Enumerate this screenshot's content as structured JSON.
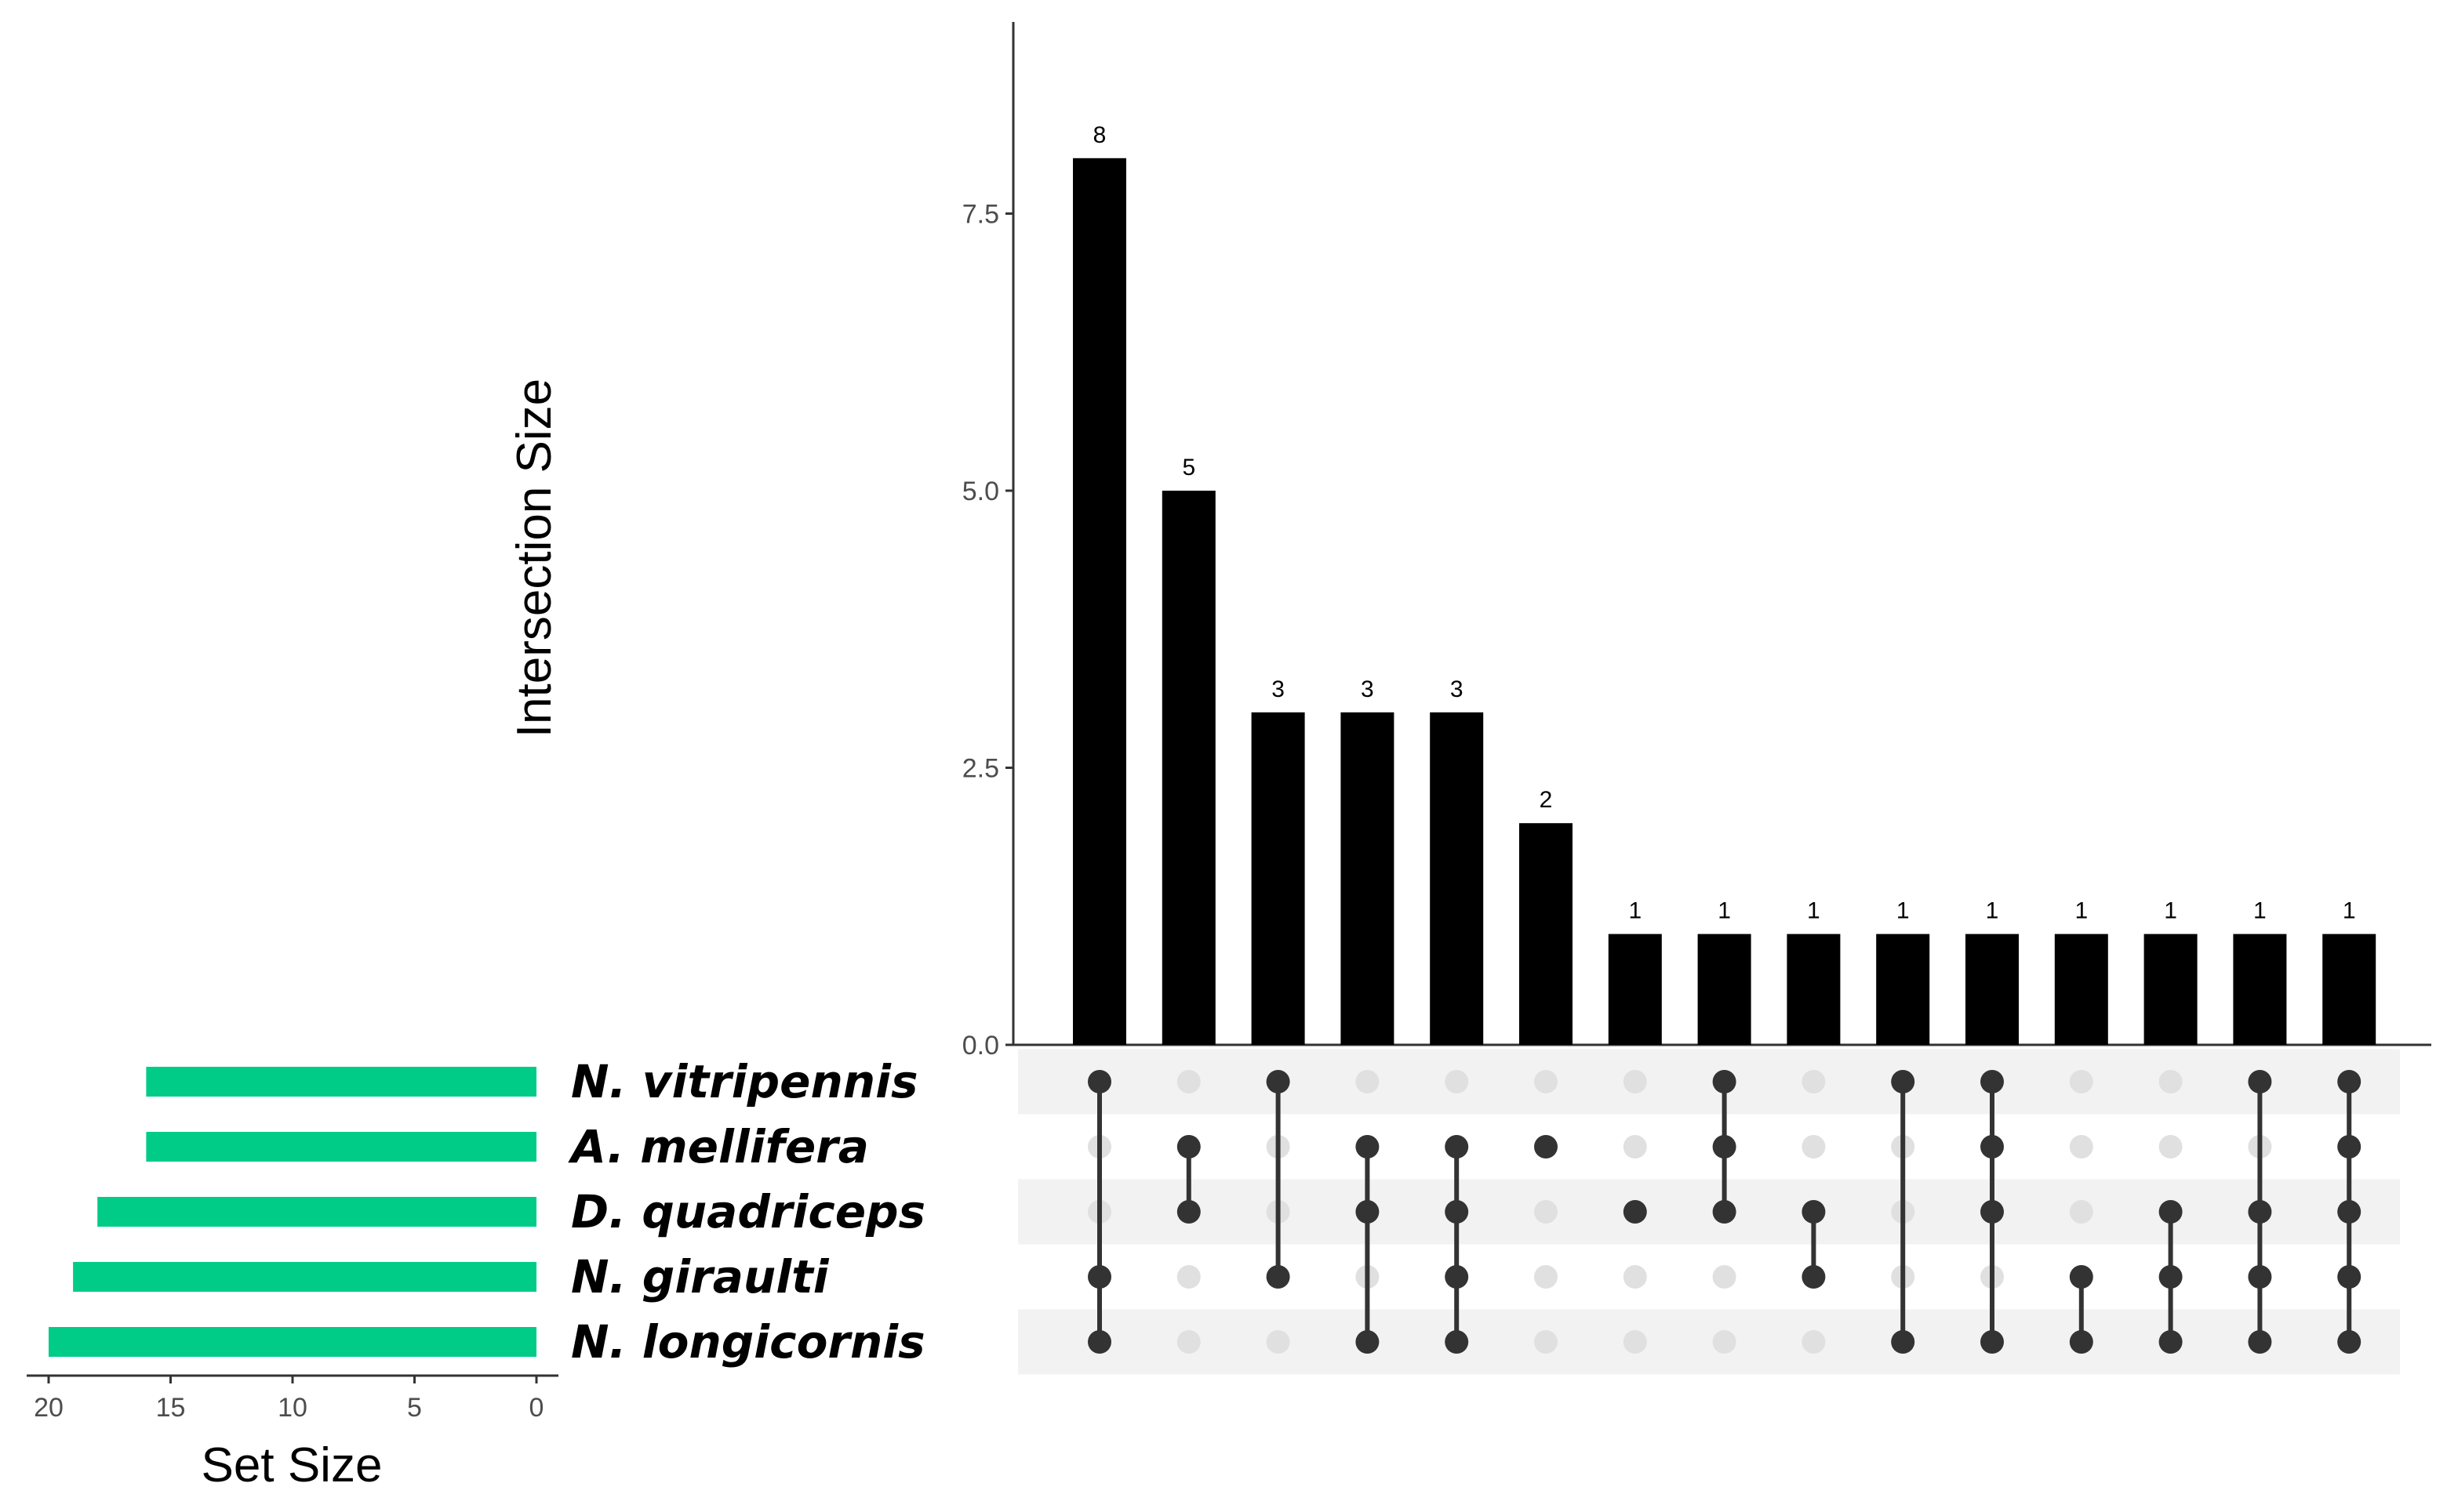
{
  "chart_data": {
    "type": "upset",
    "intersection_axis": {
      "title": "Intersection Size",
      "ylim": [
        0,
        9.2
      ],
      "ticks": [
        0,
        2.5,
        5,
        7.5
      ],
      "tick_labels": [
        "0.0",
        "2.5",
        "5.0",
        "7.5"
      ]
    },
    "set_size_axis": {
      "title": "Set Size",
      "xlim": [
        21,
        0
      ],
      "ticks": [
        20,
        15,
        10,
        5,
        0
      ],
      "tick_labels": [
        "20",
        "15",
        "10",
        "5",
        "0"
      ]
    },
    "sets": [
      {
        "name": "N. vitripennis",
        "size": 16
      },
      {
        "name": "A. mellifera",
        "size": 16
      },
      {
        "name": "D. quadriceps",
        "size": 18
      },
      {
        "name": "N. giraulti",
        "size": 19
      },
      {
        "name": "N. longicornis",
        "size": 20
      }
    ],
    "intersections": [
      {
        "value": 8,
        "label": "8",
        "members": [
          0,
          3,
          4
        ]
      },
      {
        "value": 5,
        "label": "5",
        "members": [
          1,
          2
        ]
      },
      {
        "value": 3,
        "label": "3",
        "members": [
          0,
          3
        ]
      },
      {
        "value": 3,
        "label": "3",
        "members": [
          1,
          2,
          4
        ]
      },
      {
        "value": 3,
        "label": "3",
        "members": [
          1,
          2,
          3,
          4
        ]
      },
      {
        "value": 2,
        "label": "2",
        "members": [
          1
        ]
      },
      {
        "value": 1,
        "label": "1",
        "members": [
          2
        ]
      },
      {
        "value": 1,
        "label": "1",
        "members": [
          0,
          1,
          2
        ]
      },
      {
        "value": 1,
        "label": "1",
        "members": [
          2,
          3
        ]
      },
      {
        "value": 1,
        "label": "1",
        "members": [
          0,
          4
        ]
      },
      {
        "value": 1,
        "label": "1",
        "members": [
          0,
          1,
          2,
          4
        ]
      },
      {
        "value": 1,
        "label": "1",
        "members": [
          3,
          4
        ]
      },
      {
        "value": 1,
        "label": "1",
        "members": [
          2,
          3,
          4
        ]
      },
      {
        "value": 1,
        "label": "1",
        "members": [
          0,
          2,
          3,
          4
        ]
      },
      {
        "value": 1,
        "label": "1",
        "members": [
          0,
          1,
          2,
          3,
          4
        ]
      }
    ],
    "colors": {
      "bars": "#000000",
      "set_bars": "#00cc88",
      "dot_active": "#333333",
      "dot_inactive": "#e0e0e0",
      "stripe": "#f2f2f2",
      "axis": "#333333"
    },
    "grid": false
  }
}
